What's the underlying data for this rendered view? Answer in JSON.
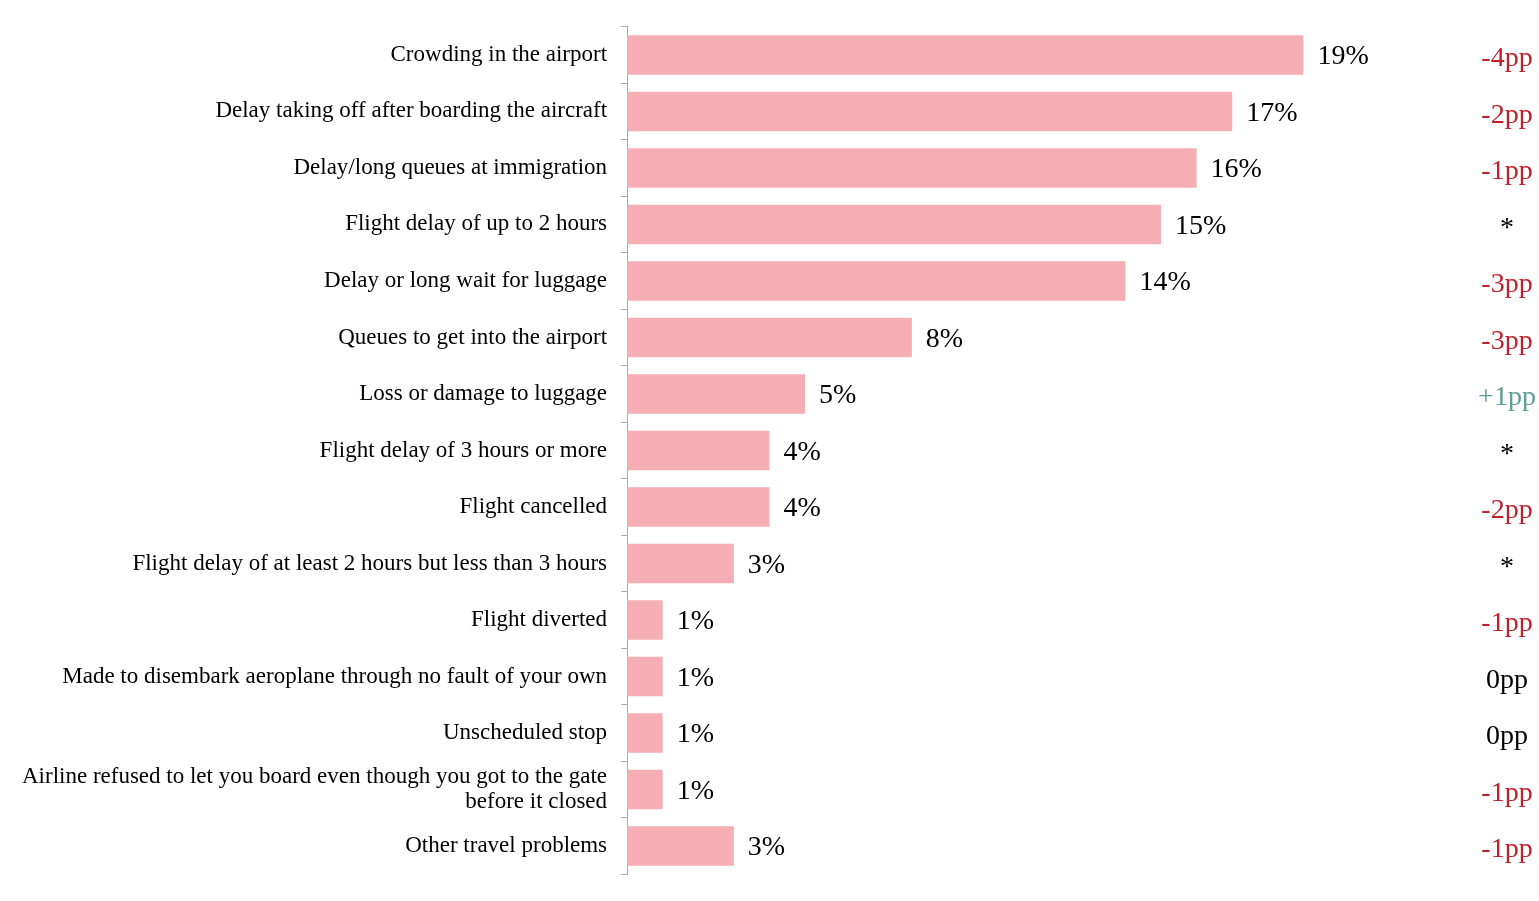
{
  "chart_data": {
    "type": "bar",
    "orientation": "horizontal",
    "categories": [
      "Crowding in the airport",
      "Delay taking off after boarding the aircraft",
      "Delay/long queues at immigration",
      "Flight delay of up to 2 hours",
      "Delay or long wait for luggage",
      "Queues to get into the airport",
      "Loss or damage to luggage",
      "Flight delay of 3 hours or more",
      "Flight cancelled",
      "Flight delay of at least 2 hours but less than 3 hours",
      "Flight diverted",
      "Made to disembark aeroplane through no fault of your own",
      "Unscheduled stop",
      "Airline refused to let you board even though you got to the gate before it closed",
      "Other travel problems"
    ],
    "values": [
      19,
      17,
      16,
      15,
      14,
      8,
      5,
      4,
      4,
      3,
      1,
      1,
      1,
      1,
      3
    ],
    "color": "#f4aeb4",
    "data_labels": true,
    "value_labels": [
      "19%",
      "17%",
      "16%",
      "15%",
      "14%",
      "8%",
      "5%",
      "4%",
      "4%",
      "3%",
      "1%",
      "1%",
      "1%",
      "1%",
      "3%"
    ],
    "grid": false,
    "legend": false,
    "annotations": [
      "-4pp",
      "-2pp",
      "-1pp",
      "*",
      "-3pp",
      "-3pp",
      "+1pp",
      "*",
      "-2pp",
      "*",
      "-1pp",
      "0pp",
      "0pp",
      "-1pp",
      "-1pp"
    ]
  }
}
